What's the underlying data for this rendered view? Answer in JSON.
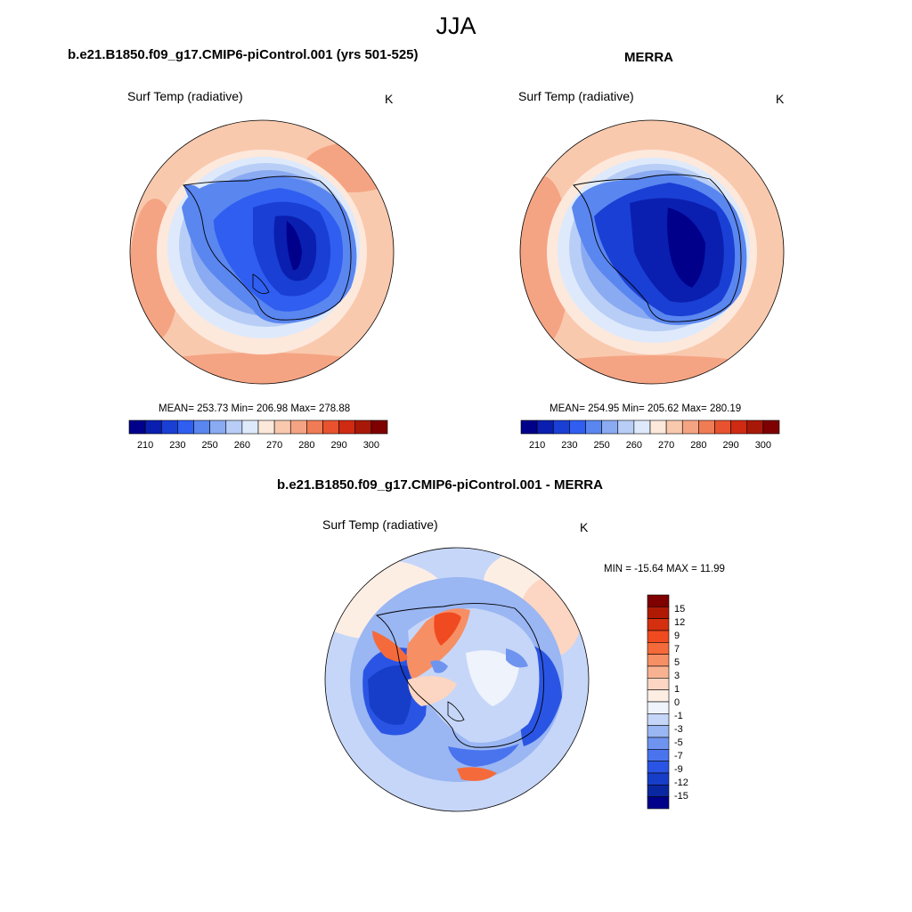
{
  "figure": {
    "season": "JJA"
  },
  "panel_model": {
    "title": "b.e21.B1850.f09_g17.CMIP6-piControl.001 (yrs 501-525)",
    "variable": "Surf Temp (radiative)",
    "unit": "K",
    "stats": "MEAN= 253.73  Min= 206.98  Max= 278.88"
  },
  "panel_obs": {
    "title": "MERRA",
    "variable": "Surf Temp (radiative)",
    "unit": "K",
    "stats": "MEAN= 254.95  Min= 205.62  Max= 280.19"
  },
  "panel_diff": {
    "title": "b.e21.B1850.f09_g17.CMIP6-piControl.001 - MERRA",
    "variable": "Surf Temp (radiative)",
    "unit": "K",
    "stats": "MIN = -15.64 MAX =  11.99"
  },
  "colorbar_abs": {
    "colors": [
      "#00008a",
      "#0a1fb0",
      "#1a3fd4",
      "#2f5ef0",
      "#5a86f0",
      "#8aaaf2",
      "#b8cef6",
      "#deeafb",
      "#fde8dc",
      "#f9c9ae",
      "#f5a483",
      "#f07c55",
      "#e8522f",
      "#cf2a12",
      "#a81808",
      "#7e0000"
    ],
    "labels": [
      "210",
      "230",
      "250",
      "260",
      "270",
      "280",
      "290",
      "300"
    ]
  },
  "colorbar_diff": {
    "colors": [
      "#7e0000",
      "#b01a05",
      "#d4300f",
      "#f04a20",
      "#f56a3a",
      "#f78f65",
      "#f9b291",
      "#fcd6c2",
      "#fdeee4",
      "#eef3fc",
      "#c6d6f8",
      "#9ab6f3",
      "#6f94f0",
      "#4a74ee",
      "#2a55e4",
      "#173ec8",
      "#0a27a2",
      "#00008a"
    ],
    "labels": [
      "15",
      "12",
      "9",
      "7",
      "5",
      "3",
      "1",
      "0",
      "-1",
      "-3",
      "-5",
      "-7",
      "-9",
      "-12",
      "-15"
    ]
  }
}
